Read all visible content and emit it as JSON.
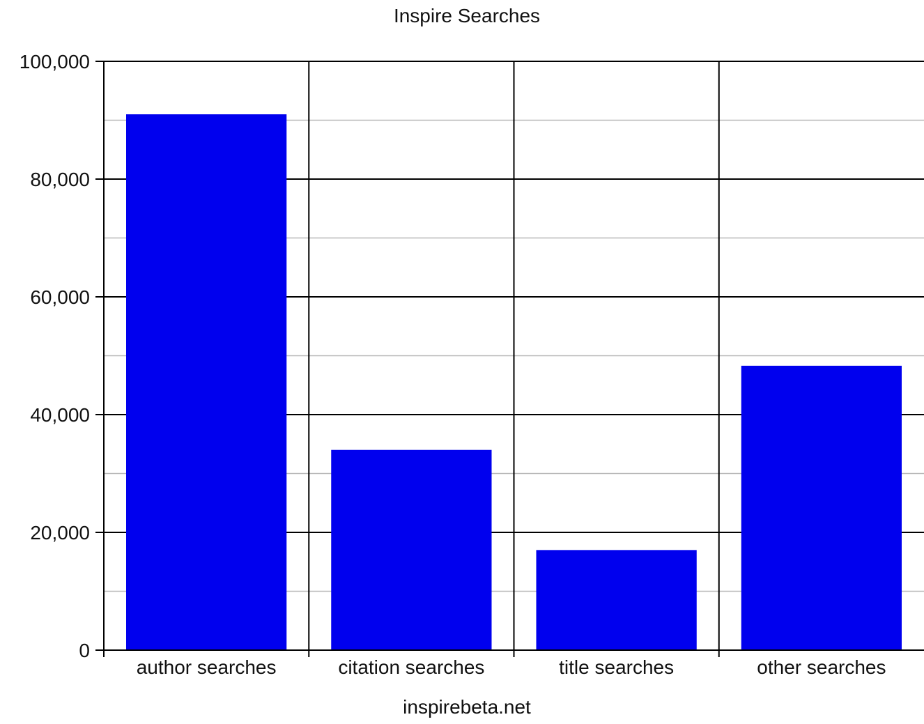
{
  "chart_data": {
    "type": "bar",
    "title": "Inspire Searches",
    "xlabel": "inspirebeta.net",
    "ylabel": "",
    "categories": [
      "author searches",
      "citation searches",
      "title searches",
      "other searches"
    ],
    "values": [
      91000,
      34000,
      17000,
      48300
    ],
    "ylim": [
      0,
      100000
    ],
    "yticks": [
      0,
      20000,
      40000,
      60000,
      80000,
      100000
    ],
    "ytick_labels": [
      "0",
      "20,000",
      "40,000",
      "60,000",
      "80,000",
      "100,000"
    ],
    "minor_yticks": [
      10000,
      30000,
      50000,
      70000,
      90000
    ],
    "grid": true,
    "legend": "none",
    "bar_color": "#0000ee"
  }
}
